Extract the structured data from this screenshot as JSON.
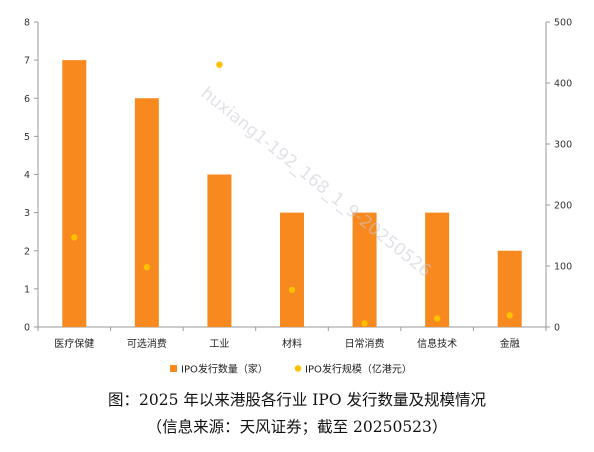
{
  "chart_data": {
    "type": "bar",
    "categories": [
      "医疗保健",
      "可选消费",
      "工业",
      "材料",
      "日常消费",
      "信息技术",
      "金融"
    ],
    "series": [
      {
        "name": "IPO发行数量（家）",
        "type": "bar",
        "axis": "left",
        "color": "#F7891F",
        "values": [
          7,
          6,
          4,
          3,
          3,
          3,
          2
        ]
      },
      {
        "name": "IPO发行规模（亿港元）",
        "type": "scatter",
        "axis": "right",
        "color": "#FFC000",
        "values": [
          147,
          98,
          430,
          61,
          6,
          14,
          19
        ]
      }
    ],
    "ylim_left": [
      0,
      8
    ],
    "yticks_left": [
      "0",
      "1",
      "2",
      "3",
      "4",
      "5",
      "6",
      "7",
      "8"
    ],
    "ylim_right": [
      0,
      500
    ],
    "yticks_right": [
      "0",
      "100",
      "200",
      "300",
      "400",
      "500"
    ],
    "legend_position": "bottom",
    "grid": false
  },
  "watermark": "huxiang1-192_168_1_9-20250526",
  "caption": {
    "line1": "图：2025 年以来港股各行业 IPO 发行数量及规模情况",
    "line2": "（信息来源：天风证券；截至 20250523）"
  }
}
